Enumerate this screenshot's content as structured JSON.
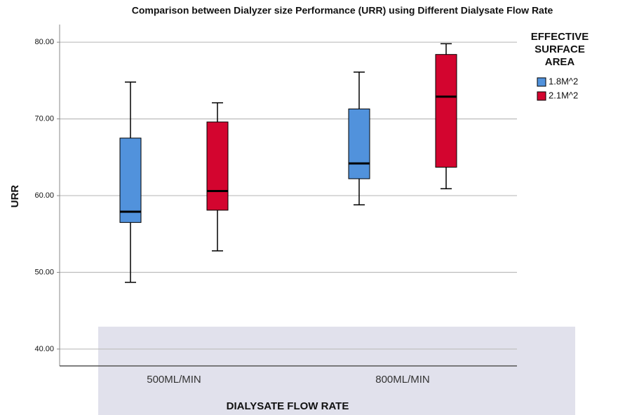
{
  "chart_data": {
    "type": "box",
    "title": "Comparison between Dialyzer size Performance (URR) using Different Dialysate Flow Rate",
    "x_label": "DIALYSATE FLOW RATE",
    "y_label": "URR",
    "categories": [
      "500ML/MIN",
      "800ML/MIN"
    ],
    "legend_title": [
      "EFFECTIVE",
      "SURFACE",
      "AREA"
    ],
    "series": [
      {
        "name": "1.8M^2",
        "color": "#5192dc",
        "values": [
          {
            "min": 48.7,
            "q1": 56.5,
            "median": 57.9,
            "q3": 67.5,
            "max": 74.8
          },
          {
            "min": 58.8,
            "q1": 62.2,
            "median": 64.2,
            "q3": 71.3,
            "max": 76.1
          }
        ]
      },
      {
        "name": "2.1M^2",
        "color": "#d3052f",
        "values": [
          {
            "min": 52.8,
            "q1": 58.1,
            "median": 60.6,
            "q3": 69.6,
            "max": 72.1
          },
          {
            "min": 60.9,
            "q1": 63.7,
            "median": 72.9,
            "q3": 78.4,
            "max": 79.8
          }
        ]
      }
    ],
    "ylim": [
      37.8,
      82.3
    ],
    "yticks": [
      {
        "value": 40,
        "label": "40.00"
      },
      {
        "value": 50,
        "label": "50.00"
      },
      {
        "value": 60,
        "label": "60.00"
      },
      {
        "value": 70,
        "label": "70.00"
      },
      {
        "value": 80,
        "label": "80.00"
      }
    ],
    "grid": true
  }
}
